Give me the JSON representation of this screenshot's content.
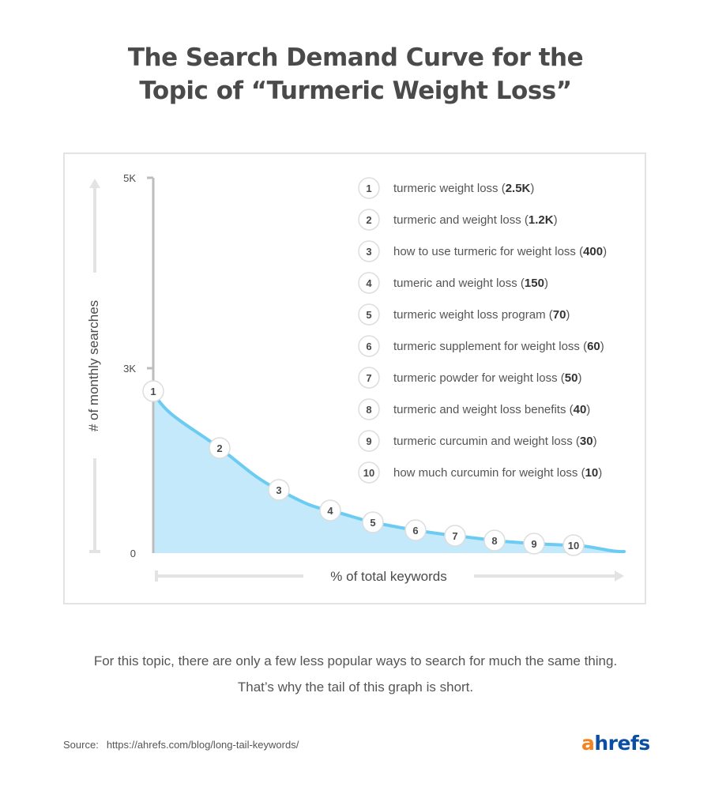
{
  "title_lines": [
    "The Search Demand Curve for the",
    "Topic of “Turmeric Weight Loss”"
  ],
  "chart_data": {
    "type": "area",
    "ylabel": "# of monthly searches",
    "xlabel": "% of total keywords",
    "y_ticks": [
      "5K",
      "3K",
      "0"
    ],
    "colors": {
      "fill": "#c3e9fb",
      "line": "#6ccbf1",
      "axis": "#bdbdbd",
      "arrow": "#e3e3e3"
    },
    "points": [
      {
        "rank": "1",
        "keyword": "turmeric weight loss",
        "volume": "2.5K",
        "value": 2500
      },
      {
        "rank": "2",
        "keyword": "turmeric and weight loss",
        "volume": "1.2K",
        "value": 1200
      },
      {
        "rank": "3",
        "keyword": "how to use turmeric for weight loss",
        "volume": "400",
        "value": 400
      },
      {
        "rank": "4",
        "keyword": "tumeric and weight loss",
        "volume": "150",
        "value": 150
      },
      {
        "rank": "5",
        "keyword": "turmeric weight loss program",
        "volume": "70",
        "value": 70
      },
      {
        "rank": "6",
        "keyword": "turmeric supplement for weight loss",
        "volume": "60",
        "value": 60
      },
      {
        "rank": "7",
        "keyword": "turmeric powder for weight loss",
        "volume": "50",
        "value": 50
      },
      {
        "rank": "8",
        "keyword": "turmeric and weight loss benefits",
        "volume": "40",
        "value": 40
      },
      {
        "rank": "9",
        "keyword": "turmeric curcumin and weight loss",
        "volume": "30",
        "value": 30
      },
      {
        "rank": "10",
        "keyword": "how much curcumin for weight loss",
        "volume": "10",
        "value": 10
      }
    ]
  },
  "footnote_lines": [
    "For this topic, there are only a few less popular ways to search for much the same thing.",
    "That’s why the tail of this graph is short."
  ],
  "source": {
    "label": "Source:",
    "url": "https://ahrefs.com/blog/long-tail-keywords/"
  },
  "logo": {
    "first": "a",
    "rest": "hrefs"
  }
}
